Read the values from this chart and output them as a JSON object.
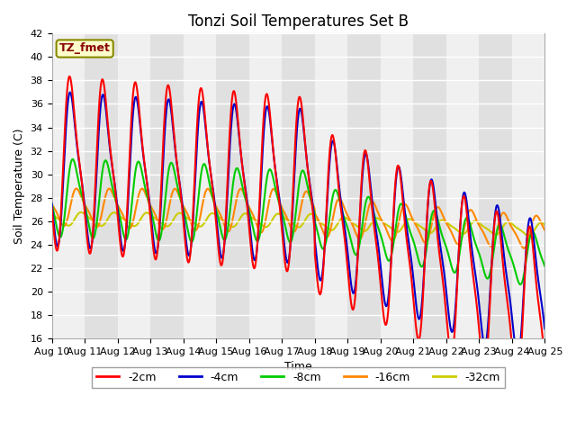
{
  "title": "Tonzi Soil Temperatures Set B",
  "xlabel": "Time",
  "ylabel": "Soil Temperature (C)",
  "ylim": [
    16,
    42
  ],
  "xtick_labels": [
    "Aug 10",
    "Aug 11",
    "Aug 12",
    "Aug 13",
    "Aug 14",
    "Aug 15",
    "Aug 16",
    "Aug 17",
    "Aug 18",
    "Aug 19",
    "Aug 20",
    "Aug 21",
    "Aug 22",
    "Aug 23",
    "Aug 24",
    "Aug 25"
  ],
  "legend_label": "TZ_fmet",
  "series_labels": [
    "-2cm",
    "-4cm",
    "-8cm",
    "-16cm",
    "-32cm"
  ],
  "series_colors": [
    "#ff0000",
    "#0000cc",
    "#00cc00",
    "#ff8800",
    "#cccc00"
  ],
  "series_linewidths": [
    1.5,
    1.5,
    1.5,
    1.5,
    1.5
  ],
  "bg_light": "#f0f0f0",
  "bg_dark": "#e0e0e0",
  "fig_bg": "#ffffff",
  "title_fontsize": 12,
  "axis_label_fontsize": 9,
  "tick_fontsize": 8
}
